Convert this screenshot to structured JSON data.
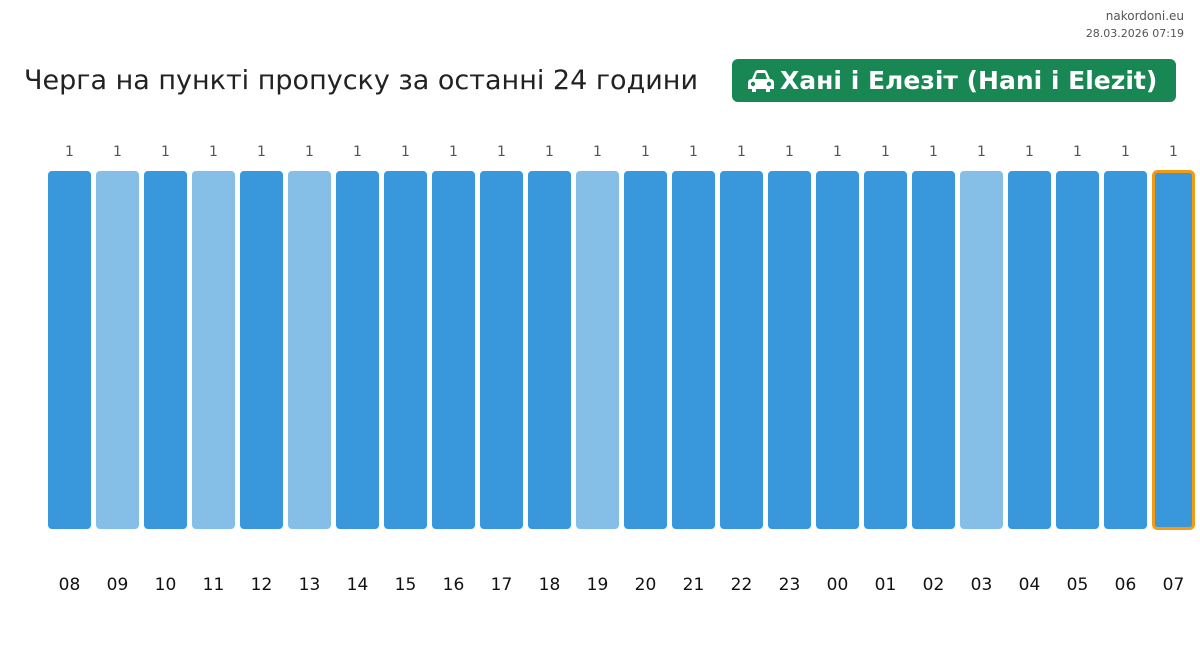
{
  "header": {
    "site_name": "nakordoni.eu",
    "timestamp": "28.03.2026 07:19",
    "title": "Черга на пункті пропуску за останні 24 години",
    "checkpoint_label": "Хані і Елезіт (Hani i Elezit)",
    "checkpoint_icon": "car-icon",
    "badge_color": "#198754"
  },
  "chart_data": {
    "type": "bar",
    "categories": [
      "08",
      "09",
      "10",
      "11",
      "12",
      "13",
      "14",
      "15",
      "16",
      "17",
      "18",
      "19",
      "20",
      "21",
      "22",
      "23",
      "00",
      "01",
      "02",
      "03",
      "04",
      "05",
      "06",
      "07"
    ],
    "values": [
      1,
      1,
      1,
      1,
      1,
      1,
      1,
      1,
      1,
      1,
      1,
      1,
      1,
      1,
      1,
      1,
      1,
      1,
      1,
      1,
      1,
      1,
      1,
      1
    ],
    "shade": [
      "dark",
      "light",
      "dark",
      "light",
      "dark",
      "light",
      "dark",
      "dark",
      "dark",
      "dark",
      "dark",
      "light",
      "dark",
      "dark",
      "dark",
      "dark",
      "dark",
      "dark",
      "dark",
      "light",
      "dark",
      "dark",
      "dark",
      "dark"
    ],
    "highlighted_category": "07",
    "colors": {
      "dark": "#3898db",
      "light": "#85bfe8",
      "highlight_border": "#f39c12"
    },
    "title": "",
    "xlabel": "",
    "ylabel": "",
    "ylim": [
      0,
      1
    ],
    "grid": false,
    "legend": "none"
  }
}
